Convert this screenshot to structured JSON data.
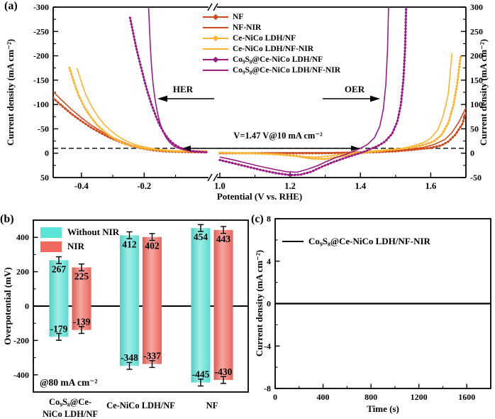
{
  "panels": {
    "a": {
      "tag": "(a)"
    },
    "b": {
      "tag": "(b)"
    },
    "c": {
      "tag": "(c)"
    }
  },
  "chart_data": [
    {
      "id": "a",
      "type": "line",
      "xlabel": "Potential (V vs. RHE)",
      "ylabel_left": "Current density (mA cm⁻²)",
      "ylabel_right": "Current density (mA cm⁻²)",
      "x_axis_break": true,
      "x_segments": [
        {
          "range": [
            -0.49,
            0.005
          ],
          "ticks": [
            -0.4,
            -0.2
          ],
          "minor_ticks": [
            -0.3,
            -0.1
          ]
        },
        {
          "range": [
            0.992,
            1.7
          ],
          "ticks": [
            1.0,
            1.2,
            1.4,
            1.6
          ],
          "minor_ticks": [
            1.1,
            1.3,
            1.5,
            1.7
          ]
        }
      ],
      "y_left": {
        "range_top_to_bottom": [
          -300,
          50
        ],
        "ticks": [
          -300,
          -250,
          -200,
          -150,
          -100,
          -50,
          0,
          50
        ]
      },
      "y_right": {
        "range_top_to_bottom": [
          300,
          -50
        ],
        "ticks": [
          300,
          250,
          200,
          150,
          100,
          50,
          0,
          -50
        ]
      },
      "reference_line_abs_current": 10,
      "annotations": {
        "her": "HER",
        "oer": "OER",
        "voltage": "V=1.47 V@10 mA cm⁻²"
      },
      "series": [
        {
          "name": "NF",
          "color": "#d14a1e",
          "marker": true,
          "her": [
            [
              -0.49,
              -113
            ],
            [
              -0.46,
              -96
            ],
            [
              -0.43,
              -80
            ],
            [
              -0.4,
              -66
            ],
            [
              -0.37,
              -53
            ],
            [
              -0.34,
              -42
            ],
            [
              -0.31,
              -32
            ],
            [
              -0.28,
              -24
            ],
            [
              -0.26,
              -19
            ],
            [
              -0.24,
              -15
            ],
            [
              -0.22,
              -12
            ],
            [
              -0.2,
              -9
            ],
            [
              -0.17,
              -6
            ],
            [
              -0.14,
              -4
            ],
            [
              -0.1,
              -3
            ],
            [
              -0.05,
              -2
            ],
            [
              0.0,
              -2
            ]
          ],
          "oer": [
            [
              1.0,
              0
            ],
            [
              1.1,
              0
            ],
            [
              1.2,
              0
            ],
            [
              1.3,
              0
            ],
            [
              1.38,
              1
            ],
            [
              1.44,
              2
            ],
            [
              1.5,
              4
            ],
            [
              1.55,
              7
            ],
            [
              1.6,
              11
            ],
            [
              1.63,
              16
            ],
            [
              1.65,
              24
            ],
            [
              1.67,
              38
            ],
            [
              1.69,
              60
            ],
            [
              1.7,
              84
            ]
          ]
        },
        {
          "name": "NF-NIR",
          "color": "#d14a1e",
          "marker": false,
          "her": [
            [
              -0.49,
              -126
            ],
            [
              -0.46,
              -107
            ],
            [
              -0.43,
              -89
            ],
            [
              -0.4,
              -73
            ],
            [
              -0.37,
              -58
            ],
            [
              -0.34,
              -46
            ],
            [
              -0.31,
              -35
            ],
            [
              -0.28,
              -26
            ],
            [
              -0.26,
              -21
            ],
            [
              -0.24,
              -16
            ],
            [
              -0.22,
              -13
            ],
            [
              -0.2,
              -10
            ],
            [
              -0.17,
              -7
            ],
            [
              -0.14,
              -5
            ],
            [
              -0.1,
              -3
            ],
            [
              -0.05,
              -2
            ],
            [
              0.0,
              -2
            ]
          ],
          "oer": [
            [
              1.0,
              0
            ],
            [
              1.1,
              0
            ],
            [
              1.2,
              1
            ],
            [
              1.3,
              1
            ],
            [
              1.38,
              2
            ],
            [
              1.44,
              3
            ],
            [
              1.5,
              5
            ],
            [
              1.54,
              8
            ],
            [
              1.58,
              12
            ],
            [
              1.61,
              18
            ],
            [
              1.64,
              28
            ],
            [
              1.66,
              42
            ],
            [
              1.68,
              64
            ],
            [
              1.7,
              93
            ]
          ]
        },
        {
          "name": "Ce-NiCo LDH/NF",
          "color": "#fdb430",
          "marker": true,
          "her": [
            [
              -0.438,
              -175
            ],
            [
              -0.424,
              -146
            ],
            [
              -0.41,
              -120
            ],
            [
              -0.39,
              -94
            ],
            [
              -0.37,
              -74
            ],
            [
              -0.35,
              -58
            ],
            [
              -0.33,
              -46
            ],
            [
              -0.31,
              -36
            ],
            [
              -0.29,
              -28
            ],
            [
              -0.27,
              -22
            ],
            [
              -0.25,
              -17
            ],
            [
              -0.23,
              -14
            ],
            [
              -0.21,
              -11
            ],
            [
              -0.19,
              -9
            ],
            [
              -0.16,
              -7
            ],
            [
              -0.13,
              -5
            ],
            [
              -0.1,
              -4
            ],
            [
              -0.06,
              -4
            ],
            [
              0.0,
              -4
            ]
          ],
          "oer": [
            [
              1.0,
              1
            ],
            [
              1.08,
              0
            ],
            [
              1.16,
              -2
            ],
            [
              1.22,
              -6
            ],
            [
              1.26,
              -11
            ],
            [
              1.3,
              -12
            ],
            [
              1.34,
              -7
            ],
            [
              1.38,
              -2
            ],
            [
              1.42,
              2
            ],
            [
              1.46,
              5
            ],
            [
              1.5,
              8
            ],
            [
              1.55,
              12
            ],
            [
              1.58,
              17
            ],
            [
              1.61,
              25
            ],
            [
              1.63,
              37
            ],
            [
              1.65,
              62
            ],
            [
              1.665,
              100
            ],
            [
              1.675,
              142
            ],
            [
              1.685,
              200
            ]
          ]
        },
        {
          "name": "Ce-NiCo LDH/NF-NIR",
          "color": "#fdb430",
          "marker": false,
          "her": [
            [
              -0.414,
              -175
            ],
            [
              -0.4,
              -146
            ],
            [
              -0.386,
              -120
            ],
            [
              -0.366,
              -94
            ],
            [
              -0.346,
              -74
            ],
            [
              -0.326,
              -58
            ],
            [
              -0.306,
              -46
            ],
            [
              -0.286,
              -36
            ],
            [
              -0.266,
              -28
            ],
            [
              -0.246,
              -22
            ],
            [
              -0.226,
              -17
            ],
            [
              -0.206,
              -14
            ],
            [
              -0.186,
              -11
            ],
            [
              -0.166,
              -9
            ],
            [
              -0.14,
              -7
            ],
            [
              -0.11,
              -5
            ],
            [
              -0.08,
              -4
            ],
            [
              0.0,
              -3
            ]
          ],
          "oer": [
            [
              1.0,
              1
            ],
            [
              1.08,
              0
            ],
            [
              1.18,
              -3
            ],
            [
              1.24,
              -7
            ],
            [
              1.28,
              -8
            ],
            [
              1.32,
              -5
            ],
            [
              1.36,
              -1
            ],
            [
              1.4,
              2
            ],
            [
              1.44,
              5
            ],
            [
              1.48,
              7
            ],
            [
              1.52,
              10
            ],
            [
              1.55,
              15
            ],
            [
              1.58,
              22
            ],
            [
              1.6,
              31
            ],
            [
              1.62,
              48
            ],
            [
              1.635,
              76
            ],
            [
              1.65,
              122
            ],
            [
              1.66,
              205
            ]
          ]
        },
        {
          "name": "Co₉S₈@Ce-NiCo LDH/NF",
          "color": "#9c1b85",
          "marker": true,
          "her": [
            [
              -0.245,
              -278
            ],
            [
              -0.235,
              -247
            ],
            [
              -0.225,
              -216
            ],
            [
              -0.213,
              -184
            ],
            [
              -0.2,
              -151
            ],
            [
              -0.188,
              -123
            ],
            [
              -0.175,
              -97
            ],
            [
              -0.162,
              -75
            ],
            [
              -0.15,
              -57
            ],
            [
              -0.137,
              -42
            ],
            [
              -0.124,
              -30
            ],
            [
              -0.11,
              -21
            ],
            [
              -0.097,
              -15
            ],
            [
              -0.085,
              -11
            ],
            [
              -0.07,
              -8
            ],
            [
              -0.055,
              -5
            ],
            [
              -0.04,
              -4
            ],
            [
              -0.02,
              -3
            ],
            [
              0.0,
              -2
            ]
          ],
          "oer": [
            [
              1.0,
              -14
            ],
            [
              1.04,
              -21
            ],
            [
              1.08,
              -28
            ],
            [
              1.12,
              -35
            ],
            [
              1.16,
              -41
            ],
            [
              1.2,
              -45
            ],
            [
              1.23,
              -44
            ],
            [
              1.26,
              -38
            ],
            [
              1.29,
              -28
            ],
            [
              1.32,
              -19
            ],
            [
              1.35,
              -11
            ],
            [
              1.38,
              -4
            ],
            [
              1.41,
              3
            ],
            [
              1.43,
              9
            ],
            [
              1.45,
              15
            ],
            [
              1.47,
              24
            ],
            [
              1.49,
              40
            ],
            [
              1.505,
              65
            ],
            [
              1.515,
              100
            ],
            [
              1.522,
              150
            ],
            [
              1.527,
              215
            ],
            [
              1.53,
              300
            ]
          ]
        },
        {
          "name": "Co₉S₈@Ce-NiCo LDH/NF-NIR",
          "color": "#9c1b85",
          "marker": false,
          "her": [
            [
              -0.186,
              -300
            ],
            [
              -0.183,
              -257
            ],
            [
              -0.18,
              -214
            ],
            [
              -0.176,
              -174
            ],
            [
              -0.171,
              -139
            ],
            [
              -0.165,
              -109
            ],
            [
              -0.158,
              -84
            ],
            [
              -0.15,
              -63
            ],
            [
              -0.141,
              -46
            ],
            [
              -0.131,
              -33
            ],
            [
              -0.12,
              -23
            ],
            [
              -0.108,
              -16
            ],
            [
              -0.095,
              -11
            ],
            [
              -0.08,
              -8
            ],
            [
              -0.06,
              -5
            ],
            [
              -0.04,
              -3
            ],
            [
              -0.02,
              -2
            ],
            [
              0.0,
              -2
            ]
          ],
          "oer": [
            [
              1.0,
              -8
            ],
            [
              1.04,
              -14
            ],
            [
              1.08,
              -21
            ],
            [
              1.12,
              -28
            ],
            [
              1.16,
              -34
            ],
            [
              1.19,
              -38
            ],
            [
              1.22,
              -39
            ],
            [
              1.25,
              -33
            ],
            [
              1.28,
              -25
            ],
            [
              1.3,
              -18
            ],
            [
              1.33,
              -9
            ],
            [
              1.36,
              -2
            ],
            [
              1.38,
              4
            ],
            [
              1.4,
              10
            ],
            [
              1.42,
              18
            ],
            [
              1.44,
              32
            ],
            [
              1.455,
              55
            ],
            [
              1.465,
              90
            ],
            [
              1.472,
              140
            ],
            [
              1.477,
              210
            ],
            [
              1.48,
              300
            ]
          ]
        }
      ]
    },
    {
      "id": "b",
      "type": "bar",
      "ylabel": "Overpotential (mV)",
      "ylim": [
        -500,
        500
      ],
      "yticks": [
        -400,
        -200,
        0,
        200,
        400
      ],
      "annotation": "@80 mA cm⁻²",
      "categories": [
        [
          "Co₉S₈@Ce-",
          "NiCo LDH/NF"
        ],
        [
          "Ce-NiCo LDH/NF"
        ],
        [
          "NF"
        ]
      ],
      "error_mV": 20,
      "series": [
        {
          "name": "Without NIR",
          "color": "#5be4d8",
          "oer_mV": [
            267,
            412,
            454
          ],
          "her_mV": [
            -179,
            -348,
            -445
          ]
        },
        {
          "name": "NIR",
          "color": "#f1685e",
          "oer_mV": [
            225,
            402,
            443
          ],
          "her_mV": [
            -139,
            -337,
            -430
          ]
        }
      ]
    },
    {
      "id": "c",
      "type": "line",
      "xlabel": "Time (s)",
      "ylabel": "Current density (mA cm⁻²)",
      "xlim": [
        0,
        1800
      ],
      "ylim": [
        -8,
        8
      ],
      "xticks": [
        0,
        400,
        800,
        1200,
        1600
      ],
      "x_minor_ticks": [
        200,
        600,
        1000,
        1400
      ],
      "yticks": [
        -8,
        -4,
        0,
        4,
        8
      ],
      "y_minor_ticks": [
        -6,
        -2,
        2,
        6
      ],
      "series": [
        {
          "name": "Co₉S₈@Ce-NiCo LDH/NF-NIR",
          "color": "#000000",
          "data": [
            [
              0,
              0
            ],
            [
              1800,
              0
            ]
          ]
        }
      ]
    }
  ]
}
